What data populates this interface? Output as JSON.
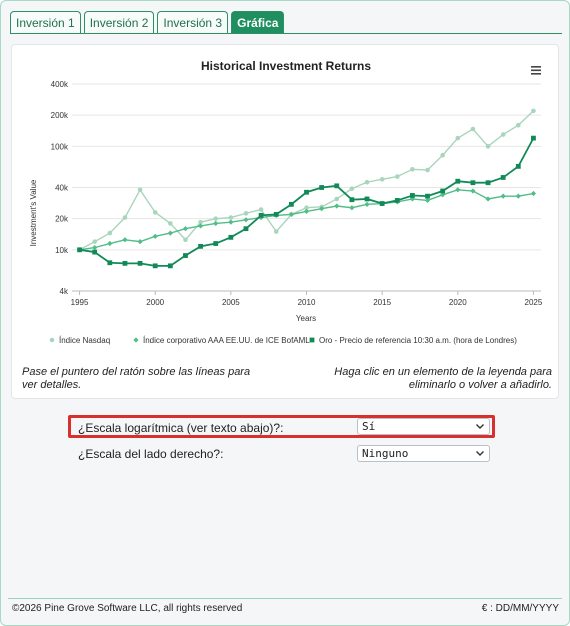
{
  "tabs": [
    {
      "label": "Inversión 1",
      "active": false
    },
    {
      "label": "Inversión 2",
      "active": false
    },
    {
      "label": "Inversión 3",
      "active": false
    },
    {
      "label": "Gráfica",
      "active": true
    }
  ],
  "menu_icon": "hamburger-menu-icon",
  "chart_data": {
    "type": "line",
    "title": "Historical Investment Returns",
    "xlabel": "Years",
    "ylabel": "Investment's Value",
    "yscale": "log",
    "ylim": [
      4000,
      400000
    ],
    "xlim": [
      1994.5,
      2025.5
    ],
    "yticks": [
      {
        "v": 4000,
        "label": "4k"
      },
      {
        "v": 10000,
        "label": "10k"
      },
      {
        "v": 20000,
        "label": "20k"
      },
      {
        "v": 40000,
        "label": "40k"
      },
      {
        "v": 100000,
        "label": "100k"
      },
      {
        "v": 200000,
        "label": "200k"
      },
      {
        "v": 400000,
        "label": "400k"
      }
    ],
    "xticks": [
      1995,
      2000,
      2005,
      2010,
      2015,
      2020,
      2025
    ],
    "legend_position": "bottom",
    "grid": "horizontal",
    "x": [
      1995,
      1996,
      1997,
      1998,
      1999,
      2000,
      2001,
      2002,
      2003,
      2004,
      2005,
      2006,
      2007,
      2008,
      2009,
      2010,
      2011,
      2012,
      2013,
      2014,
      2015,
      2016,
      2017,
      2018,
      2019,
      2020,
      2021,
      2022,
      2023,
      2024,
      2025
    ],
    "series": [
      {
        "name": "Índice Nasdaq",
        "color": "#a9d5bd",
        "marker": "circle",
        "values": [
          10000,
          12000,
          14500,
          20500,
          38000,
          23000,
          18000,
          12500,
          18500,
          20000,
          20500,
          22500,
          24500,
          15000,
          22000,
          25500,
          26000,
          31000,
          39000,
          45000,
          48000,
          51000,
          60000,
          59000,
          82000,
          120000,
          147000,
          100000,
          130000,
          160000,
          220000
        ]
      },
      {
        "name": "Índice corporativo AAA EE.UU. de ICE BofAML",
        "color": "#52bd87",
        "marker": "diamond",
        "values": [
          10000,
          10500,
          11500,
          12500,
          12000,
          13500,
          14500,
          16000,
          17000,
          18000,
          18500,
          19500,
          20500,
          21500,
          22000,
          23500,
          25000,
          26500,
          25500,
          27500,
          28000,
          29000,
          31000,
          30000,
          34000,
          38000,
          37000,
          31000,
          33000,
          33000,
          35000
        ]
      },
      {
        "name": "Oro - Precio de referencia 10:30 a.m. (hora de Londres)",
        "color": "#128a58",
        "marker": "square",
        "values": [
          10000,
          9500,
          7500,
          7400,
          7400,
          7000,
          7000,
          8800,
          10800,
          11500,
          13200,
          16000,
          21500,
          22000,
          27500,
          36000,
          40000,
          41500,
          30500,
          31000,
          28000,
          30000,
          33500,
          33000,
          37000,
          46000,
          44500,
          44500,
          50000,
          64000,
          120000
        ]
      }
    ]
  },
  "hints": {
    "left": "Pase el puntero del ratón sobre las líneas para ver detalles.",
    "right": "Haga clic en un elemento de la leyenda para eliminarlo o volver a añadirlo."
  },
  "options": [
    {
      "label": "¿Escala logarítmica (ver texto abajo)?:",
      "value": "Sí"
    },
    {
      "label": "¿Escala del lado derecho?:",
      "value": "Ninguno"
    }
  ],
  "footer": {
    "copyright": "©2026 Pine Grove Software LLC, all rights reserved",
    "format": "€ : DD/MM/YYYY"
  }
}
